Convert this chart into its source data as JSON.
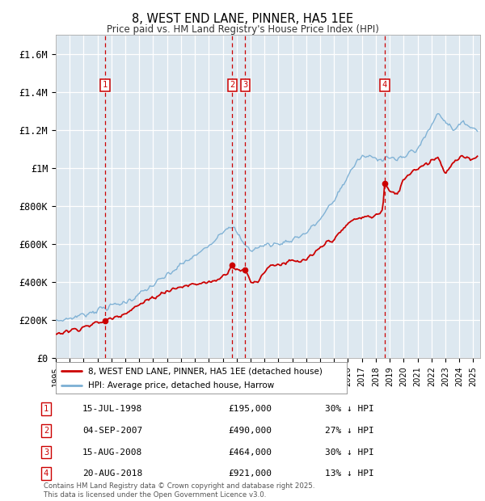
{
  "title": "8, WEST END LANE, PINNER, HA5 1EE",
  "subtitle": "Price paid vs. HM Land Registry's House Price Index (HPI)",
  "hpi_color": "#7bafd4",
  "price_color": "#cc0000",
  "background_color": "#dde8f0",
  "ylim": [
    0,
    1700000
  ],
  "yticks": [
    0,
    200000,
    400000,
    600000,
    800000,
    1000000,
    1200000,
    1400000,
    1600000
  ],
  "ytick_labels": [
    "£0",
    "£200K",
    "£400K",
    "£600K",
    "£800K",
    "£1M",
    "£1.2M",
    "£1.4M",
    "£1.6M"
  ],
  "xmin": 1995.0,
  "xmax": 2025.5,
  "transactions": [
    {
      "num": 1,
      "date": "15-JUL-1998",
      "year": 1998.54,
      "price": 195000,
      "pct": "30%",
      "dir": "↓"
    },
    {
      "num": 2,
      "date": "04-SEP-2007",
      "year": 2007.68,
      "price": 490000,
      "pct": "27%",
      "dir": "↓"
    },
    {
      "num": 3,
      "date": "15-AUG-2008",
      "year": 2008.62,
      "price": 464000,
      "pct": "30%",
      "dir": "↓"
    },
    {
      "num": 4,
      "date": "20-AUG-2018",
      "year": 2018.64,
      "price": 921000,
      "pct": "13%",
      "dir": "↓"
    }
  ],
  "footer": "Contains HM Land Registry data © Crown copyright and database right 2025.\nThis data is licensed under the Open Government Licence v3.0.",
  "legend_price": "8, WEST END LANE, PINNER, HA5 1EE (detached house)",
  "legend_hpi": "HPI: Average price, detached house, Harrow"
}
